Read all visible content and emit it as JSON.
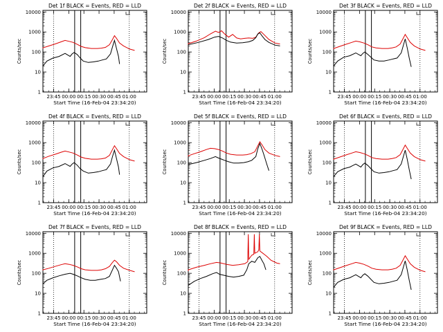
{
  "figure": {
    "title_template": "Det {det} BLACK = Events, RED = LLD",
    "xlabel": "Start Time (16-Feb-04 23:34:20)",
    "ylabel": "Counts/sec",
    "x_tick_labels": [
      "23:45",
      "00:00",
      "00:15",
      "00:30",
      "00:45",
      "01:00"
    ],
    "x_tick_minutes": [
      10.67,
      25.67,
      40.67,
      55.67,
      70.67,
      85.67
    ],
    "y_tick_labels": [
      "1",
      "10",
      "100",
      "1000",
      "10000"
    ],
    "colors": {
      "events": "#000000",
      "lld": "#dd0000",
      "axes": "#000000"
    }
  },
  "chart_data": [
    {
      "type": "line",
      "det": "1f",
      "title": "Det 1f BLACK = Events, RED = LLD",
      "xlabel": "Start Time (16-Feb-04 23:34:20)",
      "ylabel": "Counts/sec",
      "yscale": "log",
      "xlim": [
        0,
        103
      ],
      "ylim": [
        1,
        12000
      ],
      "dotted_vlines_min": [
        10.67,
        85.67
      ],
      "solid_vlines_min": [
        31.5,
        37.5
      ],
      "series": [
        {
          "name": "BLACK = Events",
          "x": [
            0,
            4,
            10,
            16,
            22,
            27,
            29,
            31,
            34,
            37,
            40,
            45,
            50,
            55,
            59,
            63,
            67,
            69,
            71,
            73,
            75,
            76
          ],
          "y": [
            20,
            35,
            50,
            60,
            85,
            60,
            80,
            95,
            75,
            50,
            35,
            30,
            32,
            35,
            40,
            45,
            80,
            180,
            380,
            150,
            60,
            25
          ]
        },
        {
          "name": "RED = LLD",
          "x": [
            -10,
            0,
            6,
            12,
            18,
            22,
            26,
            30,
            34,
            38,
            42,
            48,
            54,
            58,
            62,
            66,
            69,
            71,
            73,
            76,
            80,
            86,
            91
          ],
          "y": [
            150,
            160,
            200,
            250,
            320,
            380,
            340,
            300,
            240,
            190,
            165,
            150,
            150,
            155,
            170,
            230,
            420,
            650,
            480,
            280,
            200,
            140,
            120
          ]
        }
      ]
    },
    {
      "type": "line",
      "det": "2f",
      "title": "Det 2f BLACK = Events, RED = LLD",
      "xlabel": "Start Time (16-Feb-04 23:34:20)",
      "ylabel": "Counts/sec",
      "yscale": "log",
      "xlim": [
        0,
        103
      ],
      "ylim": [
        1,
        12000
      ],
      "dotted_vlines_min": [
        10.67,
        85.67
      ],
      "solid_vlines_min": [
        31.5,
        37.5
      ],
      "series": [
        {
          "name": "BLACK = Events",
          "x": [
            -10,
            0,
            10,
            20,
            26,
            30,
            34,
            38,
            42,
            48,
            54,
            60,
            64,
            67,
            69,
            71,
            73,
            76,
            80,
            86,
            91
          ],
          "y": [
            200,
            230,
            300,
            420,
            550,
            600,
            500,
            380,
            310,
            280,
            290,
            320,
            380,
            520,
            800,
            900,
            650,
            420,
            300,
            220,
            200
          ]
        },
        {
          "name": "RED = LLD",
          "x": [
            -10,
            0,
            8,
            16,
            22,
            27,
            30,
            33,
            36,
            40,
            44,
            48,
            52,
            56,
            60,
            64,
            67,
            70,
            72,
            75,
            80,
            86,
            91
          ],
          "y": [
            230,
            260,
            350,
            520,
            800,
            1100,
            950,
            1150,
            800,
            550,
            750,
            500,
            450,
            480,
            500,
            480,
            550,
            900,
            1050,
            750,
            420,
            280,
            250
          ]
        }
      ]
    },
    {
      "type": "line",
      "det": "3f",
      "title": "Det 3f BLACK = Events, RED = LLD",
      "xlabel": "Start Time (16-Feb-04 23:34:20)",
      "ylabel": "Counts/sec",
      "yscale": "log",
      "xlim": [
        0,
        103
      ],
      "ylim": [
        1,
        12000
      ],
      "dotted_vlines_min": [
        10.67,
        85.67
      ],
      "solid_vlines_min": [
        31.5,
        37.5
      ],
      "series": [
        {
          "name": "BLACK = Events",
          "x": [
            0,
            4,
            10,
            16,
            22,
            27,
            29,
            31,
            34,
            37,
            40,
            45,
            50,
            55,
            59,
            63,
            67,
            69,
            71,
            73,
            75,
            77
          ],
          "y": [
            20,
            35,
            55,
            65,
            90,
            65,
            85,
            100,
            75,
            55,
            40,
            35,
            35,
            40,
            45,
            50,
            90,
            200,
            450,
            160,
            50,
            18
          ]
        },
        {
          "name": "RED = LLD",
          "x": [
            -10,
            0,
            6,
            12,
            18,
            22,
            26,
            30,
            34,
            38,
            42,
            48,
            54,
            58,
            62,
            66,
            69,
            71,
            73,
            76,
            80,
            86,
            91
          ],
          "y": [
            140,
            150,
            190,
            240,
            300,
            350,
            320,
            280,
            230,
            180,
            160,
            150,
            150,
            160,
            180,
            250,
            480,
            750,
            520,
            300,
            200,
            140,
            120
          ]
        }
      ]
    },
    {
      "type": "line",
      "det": "4f",
      "title": "Det 4f BLACK = Events, RED = LLD",
      "xlabel": "Start Time (16-Feb-04 23:34:20)",
      "ylabel": "Counts/sec",
      "yscale": "log",
      "xlim": [
        0,
        103
      ],
      "ylim": [
        1,
        12000
      ],
      "dotted_vlines_min": [
        10.67,
        85.67
      ],
      "solid_vlines_min": [
        31.5,
        37.5
      ],
      "series": [
        {
          "name": "BLACK = Events",
          "x": [
            0,
            4,
            10,
            16,
            22,
            27,
            29,
            31,
            34,
            37,
            40,
            45,
            50,
            55,
            59,
            63,
            67,
            69,
            71,
            73,
            75,
            76
          ],
          "y": [
            20,
            38,
            55,
            65,
            90,
            65,
            85,
            100,
            75,
            50,
            38,
            30,
            32,
            35,
            40,
            45,
            85,
            200,
            420,
            160,
            60,
            25
          ]
        },
        {
          "name": "RED = LLD",
          "x": [
            -10,
            0,
            6,
            12,
            18,
            22,
            26,
            30,
            34,
            38,
            42,
            48,
            54,
            58,
            62,
            66,
            69,
            71,
            73,
            76,
            80,
            86,
            91
          ],
          "y": [
            150,
            160,
            210,
            260,
            330,
            380,
            340,
            300,
            240,
            190,
            165,
            150,
            150,
            155,
            170,
            230,
            450,
            700,
            500,
            290,
            200,
            140,
            120
          ]
        }
      ]
    },
    {
      "type": "line",
      "det": "5f",
      "title": "Det 5f BLACK = Events, RED = LLD",
      "xlabel": "Start Time (16-Feb-04 23:34:20)",
      "ylabel": "Counts/sec",
      "yscale": "log",
      "xlim": [
        0,
        103
      ],
      "ylim": [
        1,
        12000
      ],
      "dotted_vlines_min": [
        10.67,
        85.67
      ],
      "solid_vlines_min": [
        31.5,
        37.5
      ],
      "series": [
        {
          "name": "BLACK = Events",
          "x": [
            -10,
            0,
            8,
            16,
            22,
            27,
            30,
            33,
            36,
            40,
            45,
            50,
            55,
            59,
            63,
            67,
            69,
            71,
            73,
            75,
            78,
            80
          ],
          "y": [
            60,
            80,
            100,
            130,
            160,
            200,
            170,
            150,
            130,
            110,
            95,
            95,
            100,
            110,
            130,
            200,
            500,
            900,
            500,
            250,
            80,
            40
          ]
        },
        {
          "name": "RED = LLD",
          "x": [
            -10,
            0,
            6,
            12,
            18,
            22,
            26,
            30,
            34,
            38,
            42,
            48,
            54,
            58,
            62,
            66,
            69,
            71,
            73,
            76,
            80,
            86,
            91
          ],
          "y": [
            200,
            220,
            280,
            350,
            450,
            520,
            500,
            450,
            380,
            300,
            260,
            240,
            240,
            250,
            280,
            350,
            700,
            1100,
            800,
            450,
            300,
            230,
            200
          ]
        }
      ]
    },
    {
      "type": "line",
      "det": "6f",
      "title": "Det 6f BLACK = Events, RED = LLD",
      "xlabel": "Start Time (16-Feb-04 23:34:20)",
      "ylabel": "Counts/sec",
      "yscale": "log",
      "xlim": [
        0,
        103
      ],
      "ylim": [
        1,
        12000
      ],
      "dotted_vlines_min": [
        10.67,
        85.67
      ],
      "solid_vlines_min": [
        31.5,
        37.5
      ],
      "series": [
        {
          "name": "BLACK = Events",
          "x": [
            0,
            4,
            10,
            16,
            22,
            27,
            29,
            31,
            34,
            37,
            40,
            45,
            50,
            55,
            59,
            63,
            67,
            69,
            71,
            73,
            75,
            77
          ],
          "y": [
            20,
            35,
            50,
            60,
            85,
            60,
            80,
            95,
            72,
            50,
            35,
            30,
            32,
            35,
            40,
            45,
            85,
            190,
            420,
            150,
            45,
            15
          ]
        },
        {
          "name": "RED = LLD",
          "x": [
            -10,
            0,
            6,
            12,
            18,
            22,
            26,
            30,
            34,
            38,
            42,
            48,
            54,
            58,
            62,
            66,
            69,
            71,
            73,
            76,
            80,
            86,
            91
          ],
          "y": [
            140,
            150,
            190,
            240,
            300,
            350,
            320,
            280,
            230,
            180,
            160,
            150,
            150,
            160,
            180,
            250,
            480,
            750,
            520,
            300,
            200,
            140,
            120
          ]
        }
      ]
    },
    {
      "type": "line",
      "det": "7f",
      "title": "Det 7f BLACK = Events, RED = LLD",
      "xlabel": "Start Time (16-Feb-04 23:34:20)",
      "ylabel": "Counts/sec",
      "yscale": "log",
      "xlim": [
        0,
        103
      ],
      "ylim": [
        1,
        12000
      ],
      "dotted_vlines_min": [
        10.67,
        85.67
      ],
      "solid_vlines_min": [
        31.5,
        37.5
      ],
      "series": [
        {
          "name": "BLACK = Events",
          "x": [
            0,
            4,
            10,
            16,
            22,
            27,
            30,
            34,
            38,
            42,
            47,
            52,
            57,
            62,
            66,
            69,
            71,
            73,
            75,
            77
          ],
          "y": [
            30,
            45,
            60,
            75,
            90,
            100,
            90,
            75,
            60,
            50,
            45,
            45,
            50,
            55,
            70,
            150,
            250,
            180,
            120,
            40
          ]
        },
        {
          "name": "RED = LLD",
          "x": [
            -10,
            0,
            6,
            12,
            18,
            22,
            26,
            30,
            34,
            38,
            42,
            48,
            54,
            58,
            62,
            66,
            69,
            71,
            73,
            76,
            80,
            86,
            91
          ],
          "y": [
            140,
            150,
            180,
            220,
            270,
            300,
            280,
            250,
            210,
            170,
            150,
            140,
            140,
            150,
            170,
            220,
            350,
            450,
            380,
            250,
            180,
            140,
            120
          ]
        }
      ]
    },
    {
      "type": "line",
      "det": "8f",
      "title": "Det 8f BLACK = Events, RED = LLD",
      "xlabel": "Start Time (16-Feb-04 23:34:20)",
      "ylabel": "Counts/sec",
      "yscale": "log",
      "xlim": [
        0,
        103
      ],
      "ylim": [
        1,
        12000
      ],
      "dotted_vlines_min": [
        10.67,
        85.67
      ],
      "solid_vlines_min": [
        31.5,
        37.5
      ],
      "series": [
        {
          "name": "BLACK = Events",
          "x": [
            0,
            6,
            12,
            18,
            24,
            28,
            31,
            35,
            40,
            45,
            50,
            55,
            58,
            60,
            63,
            66,
            69,
            71,
            73,
            75,
            77
          ],
          "y": [
            25,
            40,
            55,
            70,
            95,
            110,
            90,
            80,
            70,
            65,
            70,
            80,
            150,
            300,
            400,
            350,
            600,
            700,
            450,
            300,
            150
          ]
        },
        {
          "name": "RED = LLD",
          "x": [
            -10,
            0,
            8,
            16,
            22,
            28,
            32,
            38,
            44,
            50,
            56,
            59,
            59.5,
            60,
            63,
            65,
            65.5,
            66,
            69,
            70,
            70.5,
            71,
            74,
            78,
            82,
            88,
            91
          ],
          "y": [
            130,
            150,
            200,
            250,
            300,
            350,
            330,
            280,
            250,
            270,
            300,
            380,
            9000,
            500,
            800,
            900,
            9000,
            1000,
            1200,
            1500,
            9000,
            1300,
            1000,
            700,
            450,
            320,
            300
          ]
        }
      ]
    },
    {
      "type": "line",
      "det": "9f",
      "title": "Det 9f BLACK = Events, RED = LLD",
      "xlabel": "Start Time (16-Feb-04 23:34:20)",
      "ylabel": "Counts/sec",
      "yscale": "log",
      "xlim": [
        0,
        103
      ],
      "ylim": [
        1,
        12000
      ],
      "dotted_vlines_min": [
        10.67,
        85.67
      ],
      "solid_vlines_min": [],
      "series": [
        {
          "name": "BLACK = Events",
          "x": [
            0,
            4,
            10,
            16,
            22,
            27,
            29,
            31,
            34,
            37,
            40,
            45,
            50,
            55,
            59,
            63,
            67,
            69,
            71,
            73,
            75,
            77
          ],
          "y": [
            20,
            35,
            50,
            60,
            85,
            60,
            80,
            95,
            72,
            50,
            35,
            30,
            32,
            35,
            40,
            45,
            85,
            190,
            420,
            150,
            45,
            15
          ]
        },
        {
          "name": "RED = LLD",
          "x": [
            -10,
            0,
            6,
            12,
            18,
            22,
            26,
            30,
            34,
            38,
            42,
            48,
            54,
            58,
            62,
            66,
            69,
            71,
            73,
            76,
            80,
            86,
            91
          ],
          "y": [
            140,
            150,
            190,
            240,
            300,
            350,
            320,
            280,
            230,
            180,
            160,
            150,
            150,
            160,
            180,
            250,
            480,
            750,
            520,
            300,
            200,
            140,
            120
          ]
        }
      ]
    }
  ]
}
